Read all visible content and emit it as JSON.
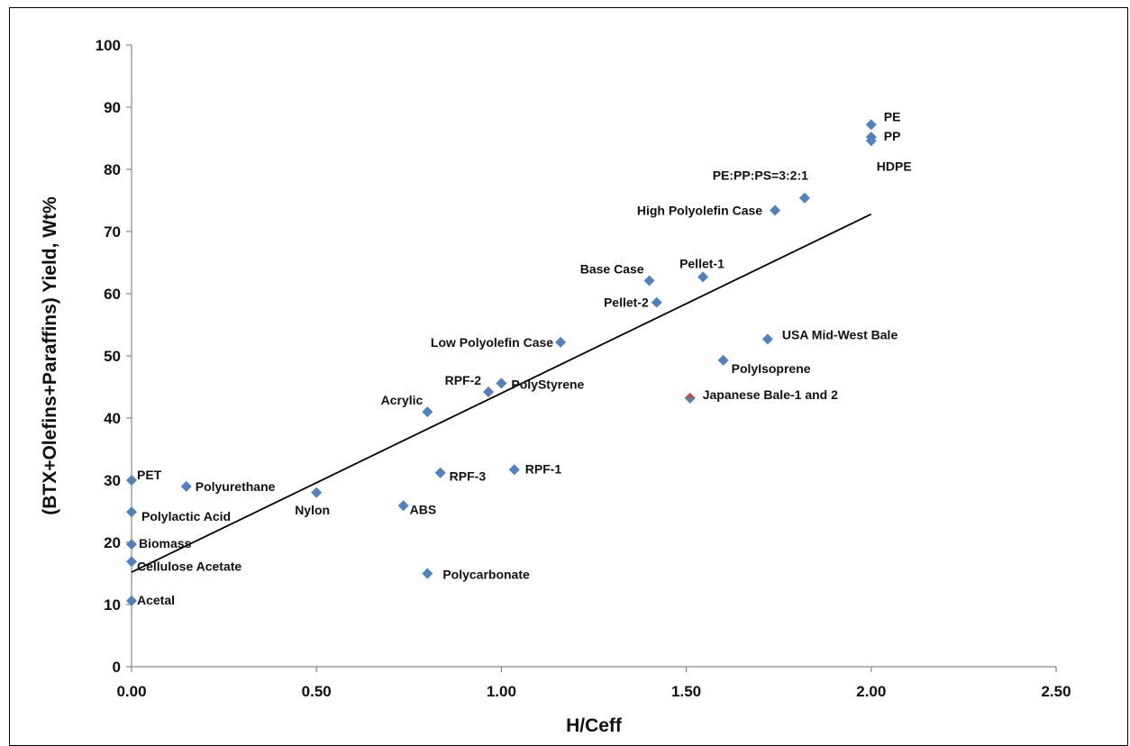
{
  "chart_data": {
    "type": "scatter",
    "xlabel": "H/Ceff",
    "ylabel": "(BTX+Olefins+Paraffins) Yield, Wt%",
    "xlim": [
      0,
      2.5
    ],
    "ylim": [
      0,
      100
    ],
    "x_ticks": [
      "0.00",
      "0.50",
      "1.00",
      "1.50",
      "2.00",
      "2.50"
    ],
    "y_ticks": [
      "0",
      "10",
      "20",
      "30",
      "40",
      "50",
      "60",
      "70",
      "80",
      "90",
      "100"
    ],
    "grid": false,
    "marker_color": "#4F81BD",
    "highlight_color": "#C0504D",
    "trendline": {
      "x": [
        0,
        2.0
      ],
      "y": [
        15.2,
        72.8
      ]
    },
    "points": [
      {
        "label": "PE",
        "x": 2.0,
        "y": 87.2
      },
      {
        "label": "PP",
        "x": 2.0,
        "y": 85.2
      },
      {
        "label": "HDPE",
        "x": 2.0,
        "y": 84.6
      },
      {
        "label": "PE:PP:PS=3:2:1",
        "x": 1.82,
        "y": 75.4
      },
      {
        "label": "High Polyolefin Case",
        "x": 1.74,
        "y": 73.4
      },
      {
        "label": "Base Case",
        "x": 1.4,
        "y": 62.1
      },
      {
        "label": "Pellet-1",
        "x": 1.545,
        "y": 62.7
      },
      {
        "label": "Pellet-2",
        "x": 1.42,
        "y": 58.6
      },
      {
        "label": "USA Mid-West Bale",
        "x": 1.72,
        "y": 52.7
      },
      {
        "label": "Low Polyolefin Case",
        "x": 1.16,
        "y": 52.2
      },
      {
        "label": "PolyIsoprene",
        "x": 1.6,
        "y": 49.3
      },
      {
        "label": "PolyStyrene",
        "x": 1.0,
        "y": 45.6
      },
      {
        "label": "RPF-2",
        "x": 0.965,
        "y": 44.2
      },
      {
        "label": "Japanese Bale-1 and 2",
        "x": 1.51,
        "y": 43.2,
        "highlight": true
      },
      {
        "label": "Acrylic",
        "x": 0.8,
        "y": 41.0
      },
      {
        "label": "RPF-1",
        "x": 1.035,
        "y": 31.7
      },
      {
        "label": "RPF-3",
        "x": 0.835,
        "y": 31.2
      },
      {
        "label": "PET",
        "x": 0.0,
        "y": 30.0
      },
      {
        "label": "Polyurethane",
        "x": 0.148,
        "y": 29.0
      },
      {
        "label": "Nylon",
        "x": 0.5,
        "y": 28.0
      },
      {
        "label": "ABS",
        "x": 0.735,
        "y": 25.9
      },
      {
        "label": "Polylactic Acid",
        "x": 0.0,
        "y": 24.9
      },
      {
        "label": "Biomass",
        "x": 0.0,
        "y": 19.7
      },
      {
        "label": "Cellulose Acetate",
        "x": 0.0,
        "y": 16.9
      },
      {
        "label": "Polycarbonate",
        "x": 0.8,
        "y": 15.0
      },
      {
        "label": "Acetal",
        "x": 0.0,
        "y": 10.6
      }
    ]
  }
}
